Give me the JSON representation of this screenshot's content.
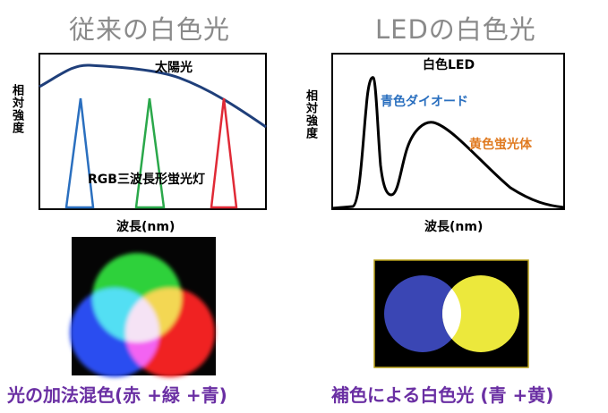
{
  "left_panel": {
    "title": "従来の白色光",
    "ylabel": "相対強度",
    "xlabel": "波長(nm)",
    "annotations": {
      "sunlight": "太陽光",
      "rgb_lamp": "RGB三波長形蛍光灯"
    },
    "caption": "光の加法混色(赤 +緑 +青)"
  },
  "right_panel": {
    "title": "LEDの白色光",
    "ylabel": "相対強度",
    "xlabel": "波長(nm)",
    "annotations": {
      "white_led": "白色LED",
      "blue_diode": "青色ダイオード",
      "yellow_phosphor": "黄色蛍光体"
    },
    "caption": "補色による白色光 (青 +黄)"
  },
  "colors": {
    "title": "#8a8a8a",
    "caption": "#6a2fa3",
    "sunlight_curve": "#1f3f7a",
    "peak_blue": "#2a6fbf",
    "peak_green": "#2aa84a",
    "peak_red": "#e02a36",
    "blue_label": "#2a6fbf",
    "orange_label": "#e07a20",
    "led_blue_circle": "#3a46b4",
    "led_yellow_circle": "#ece83c"
  }
}
